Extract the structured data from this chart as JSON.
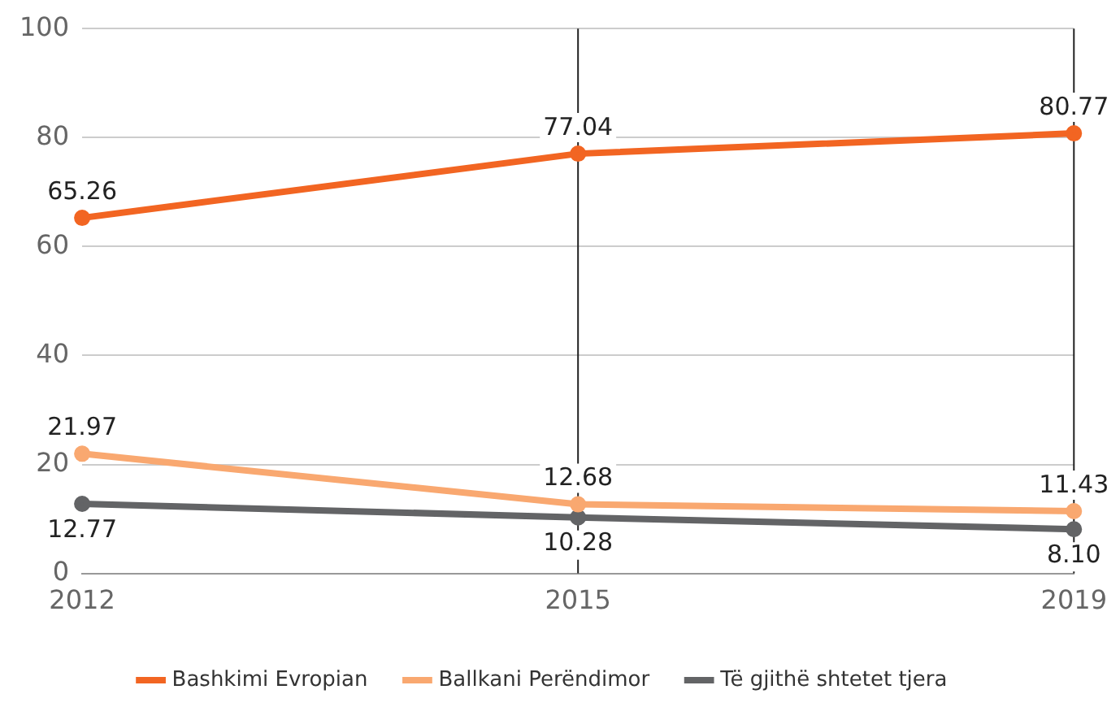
{
  "chart_data": {
    "type": "line",
    "categories": [
      "2012",
      "2015",
      "2019"
    ],
    "series": [
      {
        "name": "Bashkimi Evropian",
        "color": "#f26522",
        "values": [
          65.26,
          77.04,
          80.77
        ],
        "value_labels": [
          "65.26",
          "77.04",
          "80.77"
        ]
      },
      {
        "name": "Ballkani Perëndimor",
        "color": "#f9a870",
        "values": [
          21.97,
          12.68,
          11.43
        ],
        "value_labels": [
          "21.97",
          "12.68",
          "11.43"
        ]
      },
      {
        "name": "Të gjithë shtetet tjera",
        "color": "#636466",
        "values": [
          12.77,
          10.28,
          8.1
        ],
        "value_labels": [
          "12.77",
          "10.28",
          "8.10"
        ]
      }
    ],
    "ylim": [
      0,
      100
    ],
    "yticks": [
      0,
      20,
      40,
      60,
      80,
      100
    ],
    "grid": "y",
    "ref_lines": [
      {
        "axis": "x",
        "value": "2015",
        "color": "#222222"
      },
      {
        "axis": "x",
        "value": "2019",
        "color": "#222222"
      }
    ],
    "legend": "bottom",
    "marker": "circle",
    "line_style": "solid"
  }
}
